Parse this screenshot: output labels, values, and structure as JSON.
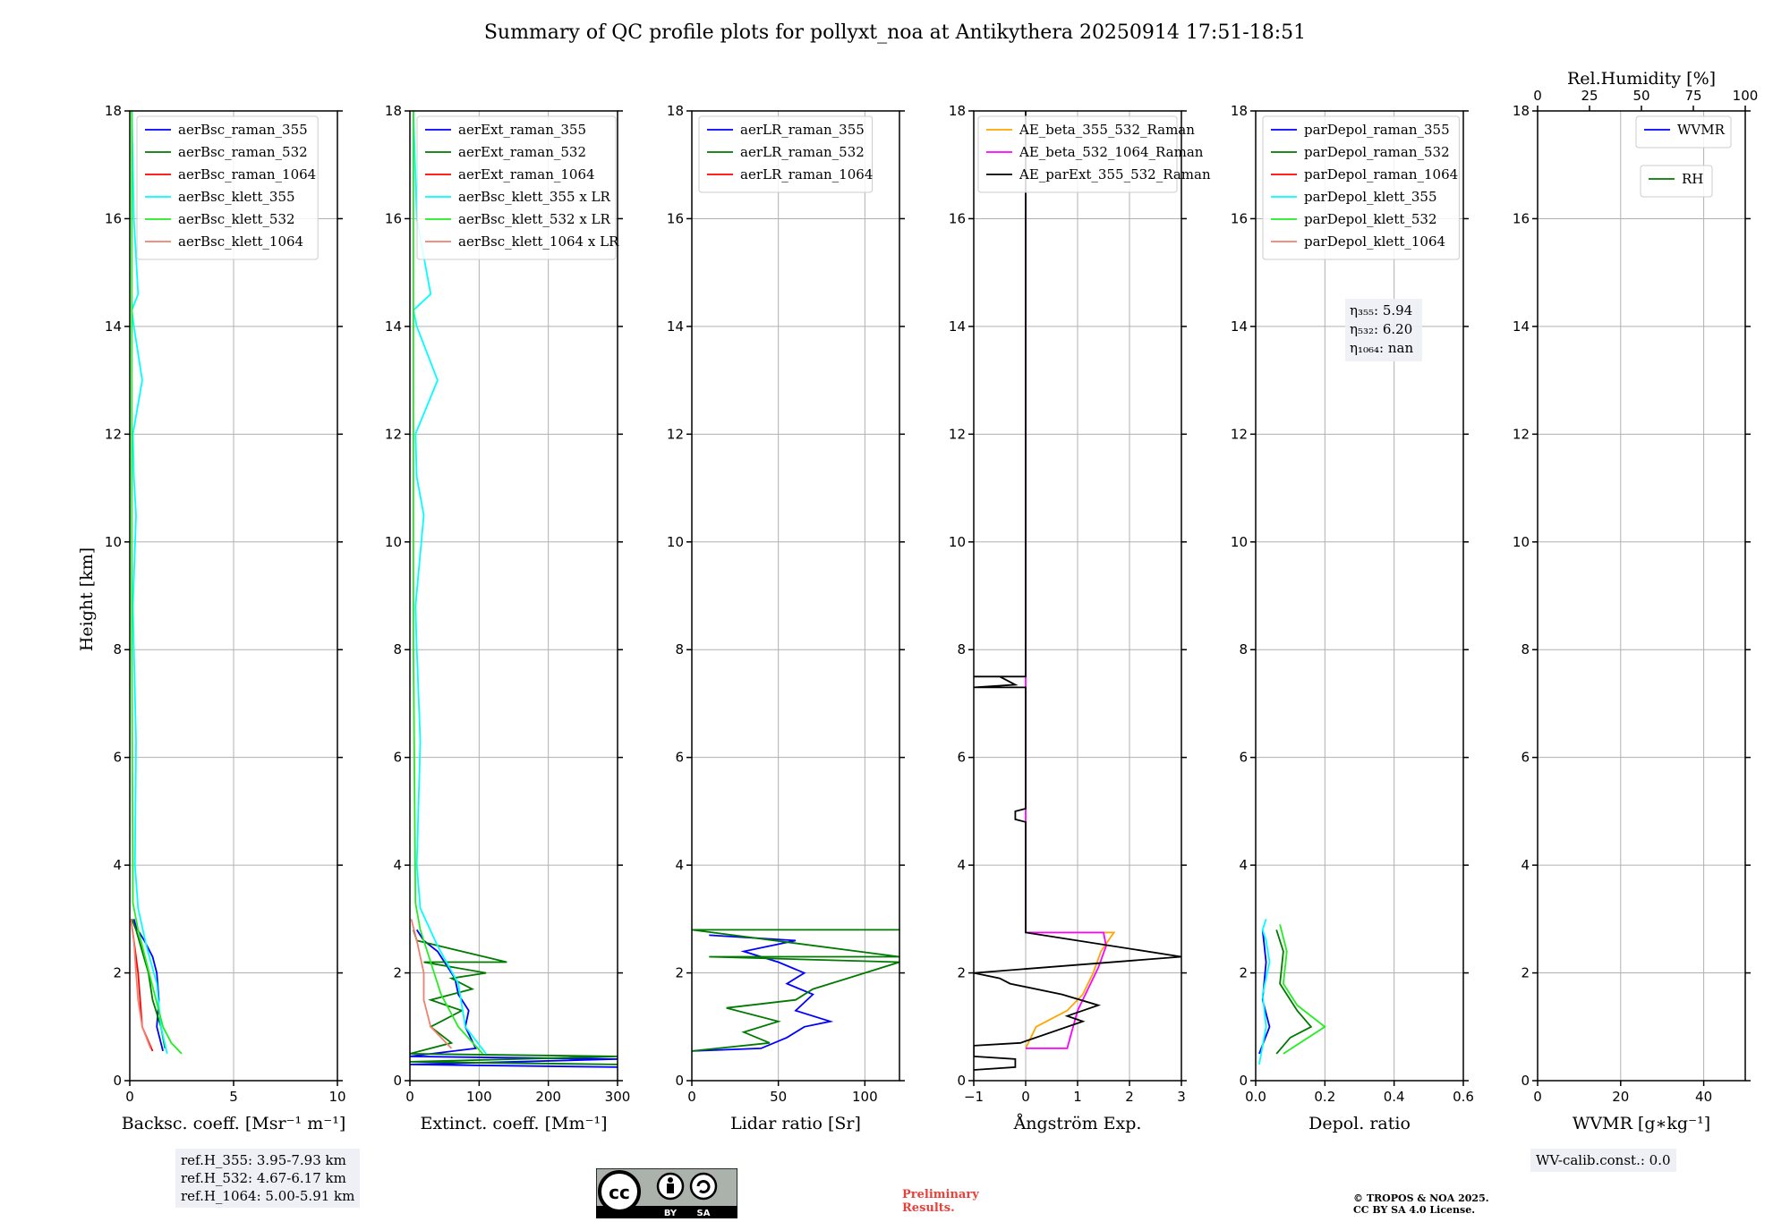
{
  "title": "Summary of QC profile plots for pollyxt_noa at Antikythera 20250914 17:51-18:51",
  "ylabel": "Height [km]",
  "colors": {
    "blue": "#0000ff",
    "green": "#007a00",
    "red": "#ff0000",
    "cyan": "#00ffff",
    "lime": "#22ee22",
    "salmon": "#f08070",
    "orange": "#ffa500",
    "magenta": "#ff00ff",
    "black": "#000000"
  },
  "chart_data": [
    {
      "type": "line",
      "xlabel": "Backsc. coeff. [Msr⁻¹ m⁻¹]",
      "xlim": [
        0,
        10
      ],
      "ylim": [
        0,
        18
      ],
      "xticks": [
        "0",
        "5",
        "10"
      ],
      "yticks": [
        "0",
        "2",
        "4",
        "6",
        "8",
        "10",
        "12",
        "14",
        "16",
        "18"
      ],
      "legend": [
        "aerBsc_raman_355",
        "aerBsc_raman_532",
        "aerBsc_raman_1064",
        "aerBsc_klett_355",
        "aerBsc_klett_532",
        "aerBsc_klett_1064"
      ],
      "legend_colors": [
        "blue",
        "green",
        "red",
        "cyan",
        "lime",
        "salmon"
      ],
      "series": [
        {
          "name": "aerBsc_raman_355",
          "color": "blue",
          "x": [
            1.6,
            1.3,
            1.4,
            1.3,
            1.1,
            0.7,
            0.3,
            0.2
          ],
          "y": [
            0.55,
            1.0,
            1.5,
            2.0,
            2.3,
            2.6,
            2.85,
            3.0
          ]
        },
        {
          "name": "aerBsc_raman_532",
          "color": "green",
          "x": [
            1.7,
            1.5,
            1.1,
            0.9,
            0.6,
            0.3,
            0.1
          ],
          "y": [
            0.6,
            1.0,
            1.5,
            2.0,
            2.4,
            2.8,
            3.0
          ]
        },
        {
          "name": "aerBsc_raman_1064",
          "color": "red",
          "x": [
            1.1,
            0.6,
            0.5,
            0.4,
            0.2,
            0.05
          ],
          "y": [
            0.55,
            1.0,
            1.5,
            2.0,
            2.6,
            3.0
          ]
        },
        {
          "name": "aerBsc_klett_355",
          "color": "cyan",
          "x": [
            1.8,
            1.5,
            1.3,
            0.8,
            0.4,
            0.25,
            0.3,
            0.2,
            0.15,
            0.3,
            0.2,
            0.15,
            0.6,
            0.2,
            0.1,
            0.4,
            0.2,
            0.1
          ],
          "y": [
            0.5,
            1.0,
            1.8,
            2.5,
            3.2,
            4.0,
            6.3,
            8.0,
            8.8,
            10.5,
            11.2,
            12.0,
            13.0,
            14.0,
            14.3,
            14.6,
            16.0,
            18.0
          ]
        },
        {
          "name": "aerBsc_klett_532",
          "color": "lime",
          "x": [
            2.5,
            2.0,
            1.6,
            1.2,
            0.8,
            0.4,
            0.15,
            0.1,
            0.1
          ],
          "y": [
            0.5,
            0.7,
            1.0,
            1.6,
            2.2,
            2.8,
            3.3,
            8.0,
            18.0
          ]
        },
        {
          "name": "aerBsc_klett_1064",
          "color": "salmon",
          "x": [
            1.0,
            0.6,
            0.4,
            0.3,
            0.2,
            0.05
          ],
          "y": [
            0.6,
            1.0,
            1.5,
            2.0,
            2.6,
            3.0
          ]
        }
      ]
    },
    {
      "type": "line",
      "xlabel": "Extinct. coeff. [Mm⁻¹]",
      "xlim": [
        0,
        300
      ],
      "ylim": [
        0,
        18
      ],
      "xticks": [
        "0",
        "100",
        "200",
        "300"
      ],
      "yticks": [
        "0",
        "2",
        "4",
        "6",
        "8",
        "10",
        "12",
        "14",
        "16",
        "18"
      ],
      "legend": [
        "aerExt_raman_355",
        "aerExt_raman_532",
        "aerExt_raman_1064",
        "aerBsc_klett_355 x LR",
        "aerBsc_klett_532 x LR",
        "aerBsc_klett_1064 x LR"
      ],
      "legend_colors": [
        "blue",
        "green",
        "red",
        "cyan",
        "lime",
        "salmon"
      ],
      "series": [
        {
          "name": "aerExt_raman_355",
          "color": "blue",
          "x": [
            300,
            0,
            300,
            0,
            95,
            80,
            85,
            70,
            65,
            55,
            40,
            20,
            10
          ],
          "y": [
            0.25,
            0.3,
            0.4,
            0.45,
            0.6,
            1.0,
            1.3,
            1.6,
            1.9,
            2.1,
            2.4,
            2.6,
            2.8
          ]
        },
        {
          "name": "aerExt_raman_532",
          "color": "green",
          "x": [
            300,
            0,
            300,
            0,
            60,
            30,
            75,
            30,
            90,
            60,
            110,
            20,
            140,
            10,
            5
          ],
          "y": [
            0.3,
            0.35,
            0.45,
            0.5,
            0.7,
            1.0,
            1.3,
            1.5,
            1.7,
            1.9,
            2.0,
            2.2,
            2.2,
            2.6,
            2.8
          ]
        },
        {
          "name": "aerBsc_klett_355 x LR",
          "color": "cyan",
          "x": [
            110,
            80,
            70,
            40,
            15,
            10,
            15,
            10,
            8,
            20,
            10,
            8,
            40,
            10,
            5,
            30,
            10,
            5
          ],
          "y": [
            0.5,
            1.0,
            1.8,
            2.5,
            3.2,
            4.0,
            6.3,
            8.0,
            8.8,
            10.5,
            11.2,
            12.0,
            13.0,
            14.0,
            14.3,
            14.6,
            16.0,
            18.0
          ]
        },
        {
          "name": "aerBsc_klett_532 x LR",
          "color": "lime",
          "x": [
            105,
            70,
            45,
            30,
            15,
            8,
            5,
            5
          ],
          "y": [
            0.5,
            1.0,
            1.6,
            2.2,
            2.8,
            3.3,
            8.0,
            18.0
          ]
        },
        {
          "name": "aerBsc_klett_1064 x LR",
          "color": "salmon",
          "x": [
            60,
            30,
            20,
            20,
            10,
            2
          ],
          "y": [
            0.6,
            1.0,
            1.5,
            2.0,
            2.6,
            3.0
          ]
        }
      ]
    },
    {
      "type": "line",
      "xlabel": "Lidar ratio [Sr]",
      "xlim": [
        0,
        120
      ],
      "ylim": [
        0,
        18
      ],
      "xticks": [
        "0",
        "50",
        "100"
      ],
      "yticks": [
        "0",
        "2",
        "4",
        "6",
        "8",
        "10",
        "12",
        "14",
        "16",
        "18"
      ],
      "legend": [
        "aerLR_raman_355",
        "aerLR_raman_532",
        "aerLR_raman_1064"
      ],
      "legend_colors": [
        "blue",
        "green",
        "red"
      ],
      "series": [
        {
          "name": "aerLR_raman_355",
          "color": "blue",
          "x": [
            0,
            40,
            55,
            65,
            80,
            60,
            70,
            55,
            65,
            50,
            30,
            60,
            10
          ],
          "y": [
            0.55,
            0.6,
            0.8,
            1.0,
            1.1,
            1.3,
            1.6,
            1.8,
            2.0,
            2.2,
            2.4,
            2.6,
            2.7
          ]
        },
        {
          "name": "aerLR_raman_532",
          "color": "green",
          "x": [
            0,
            45,
            30,
            50,
            20,
            60,
            70,
            90,
            120,
            10,
            120,
            0,
            120
          ],
          "y": [
            0.55,
            0.7,
            0.9,
            1.1,
            1.35,
            1.5,
            1.7,
            1.9,
            2.2,
            2.3,
            2.3,
            2.8,
            2.8
          ]
        }
      ]
    },
    {
      "type": "line",
      "xlabel": "Ångström Exp.",
      "xlim": [
        -1,
        3
      ],
      "ylim": [
        0,
        18
      ],
      "xticks": [
        "−1",
        "0",
        "1",
        "2",
        "3"
      ],
      "yticks": [
        "0",
        "2",
        "4",
        "6",
        "8",
        "10",
        "12",
        "14",
        "16",
        "18"
      ],
      "legend": [
        "AE_beta_355_532_Raman",
        "AE_beta_532_1064_Raman",
        "AE_parExt_355_532_Raman"
      ],
      "legend_colors": [
        "orange",
        "magenta",
        "black"
      ],
      "series": [
        {
          "name": "AE_beta_355_532_Raman",
          "color": "orange",
          "x": [
            0,
            0.2,
            0.8,
            1.1,
            1.3,
            1.45,
            1.7,
            0,
            0
          ],
          "y": [
            0.6,
            1.0,
            1.3,
            1.6,
            2.0,
            2.4,
            2.75,
            2.75,
            3.0
          ]
        },
        {
          "name": "AE_beta_532_1064_Raman",
          "color": "magenta",
          "x": [
            0,
            0.8,
            1.0,
            1.2,
            1.4,
            1.55,
            1.5,
            0,
            0,
            0
          ],
          "y": [
            0.6,
            0.6,
            1.3,
            1.7,
            2.1,
            2.5,
            2.75,
            2.75,
            7.3,
            17.8
          ]
        },
        {
          "name": "AE_parExt_355_532_Raman",
          "color": "black",
          "x": [
            -1,
            -0.2,
            -0.2,
            -1,
            -1,
            -0.1,
            1.1,
            0.8,
            1.4,
            0.7,
            -0.3,
            -0.5,
            -1,
            3.0,
            0,
            0,
            -0.2,
            -0.2,
            0,
            0,
            -1,
            -0.2,
            -0.5,
            -1,
            0,
            0
          ],
          "y": [
            0.2,
            0.25,
            0.4,
            0.45,
            0.65,
            0.7,
            1.1,
            1.2,
            1.4,
            1.6,
            1.8,
            1.9,
            2.0,
            2.3,
            2.75,
            4.8,
            4.85,
            5.0,
            5.05,
            7.3,
            7.3,
            7.35,
            7.5,
            7.5,
            7.5,
            18.0
          ]
        }
      ]
    },
    {
      "type": "line",
      "xlabel": "Depol. ratio",
      "xlim": [
        0,
        0.6
      ],
      "ylim": [
        0,
        18
      ],
      "xticks": [
        "0.0",
        "0.2",
        "0.4",
        "0.6"
      ],
      "yticks": [
        "0",
        "2",
        "4",
        "6",
        "8",
        "10",
        "12",
        "14",
        "16",
        "18"
      ],
      "legend": [
        "parDepol_raman_355",
        "parDepol_raman_532",
        "parDepol_raman_1064",
        "parDepol_klett_355",
        "parDepol_klett_532",
        "parDepol_klett_1064"
      ],
      "legend_colors": [
        "blue",
        "green",
        "red",
        "cyan",
        "lime",
        "salmon"
      ],
      "series": [
        {
          "name": "parDepol_raman_355",
          "color": "blue",
          "x": [
            0.01,
            0.04,
            0.02,
            0.03,
            0.02
          ],
          "y": [
            0.5,
            1.0,
            1.5,
            2.2,
            2.8
          ]
        },
        {
          "name": "parDepol_raman_532",
          "color": "green",
          "x": [
            0.06,
            0.1,
            0.16,
            0.12,
            0.07,
            0.08,
            0.06
          ],
          "y": [
            0.5,
            0.8,
            1.0,
            1.3,
            1.8,
            2.4,
            2.8
          ]
        },
        {
          "name": "parDepol_klett_355",
          "color": "cyan",
          "x": [
            0.01,
            0.03,
            0.02,
            0.04,
            0.03,
            0.02,
            0.03
          ],
          "y": [
            0.3,
            1.0,
            1.6,
            2.2,
            2.6,
            2.8,
            3.0
          ]
        },
        {
          "name": "parDepol_klett_532",
          "color": "lime",
          "x": [
            0.08,
            0.2,
            0.12,
            0.08,
            0.09,
            0.07
          ],
          "y": [
            0.5,
            1.0,
            1.4,
            1.8,
            2.4,
            2.9
          ]
        }
      ],
      "annotations": [
        "η₃₅₅: 5.94",
        "η₅₃₂: 6.20",
        "η₁₀₆₄: nan"
      ]
    },
    {
      "type": "line",
      "xlabel": "WVMR [g∗kg⁻¹]",
      "xlim": [
        0,
        50
      ],
      "ylim": [
        0,
        18
      ],
      "xticks": [
        "0",
        "20",
        "40"
      ],
      "yticks": [
        "0",
        "2",
        "4",
        "6",
        "8",
        "10",
        "12",
        "14",
        "16",
        "18"
      ],
      "top_xlabel": "Rel.Humidity [%]",
      "top_xlim": [
        0,
        100
      ],
      "top_xticks": [
        "0",
        "25",
        "50",
        "75",
        "100"
      ],
      "legend": [
        "WVMR"
      ],
      "legend_colors": [
        "blue"
      ],
      "legend2": [
        "RH"
      ],
      "legend2_colors": [
        "green"
      ],
      "series": []
    }
  ],
  "refH": [
    "ref.H_355: 3.95-7.93 km",
    "ref.H_532: 4.67-6.17 km",
    "ref.H_1064: 5.00-5.91 km"
  ],
  "wv_calib": "WV-calib.const.: 0.0",
  "prelim": [
    "Preliminary",
    "Results."
  ],
  "copyright": [
    "© TROPOS & NOA 2025.",
    "CC BY SA 4.0 License."
  ],
  "cc_badge": [
    "BY",
    "SA"
  ]
}
